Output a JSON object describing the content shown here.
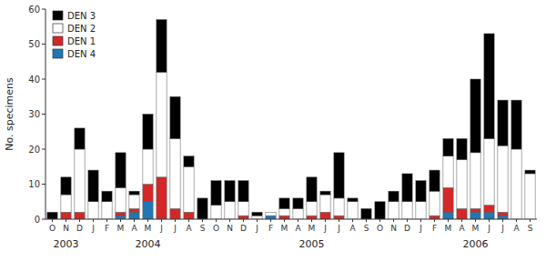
{
  "chart_data": {
    "type": "bar",
    "stacked": true,
    "categories": [
      "O",
      "N",
      "D",
      "J",
      "F",
      "M",
      "A",
      "M",
      "J",
      "J",
      "A",
      "S",
      "O",
      "N",
      "D",
      "J",
      "F",
      "M",
      "A",
      "M",
      "J",
      "J",
      "A",
      "S",
      "O",
      "N",
      "D",
      "J",
      "F",
      "M",
      "A",
      "M",
      "J",
      "J",
      "A",
      "S"
    ],
    "series": [
      {
        "name": "DEN 4",
        "color": "#1f77b4",
        "values": [
          0,
          0,
          0,
          0,
          0,
          1,
          2,
          5,
          0,
          0,
          0,
          0,
          0,
          0,
          0,
          0,
          1,
          0,
          0,
          0,
          0,
          0,
          0,
          0,
          0,
          0,
          0,
          0,
          0,
          2,
          0,
          2,
          2,
          1,
          0,
          0
        ]
      },
      {
        "name": "DEN 1",
        "color": "#d62728",
        "values": [
          0,
          2,
          2,
          0,
          0,
          1,
          1,
          5,
          12,
          3,
          2,
          0,
          0,
          0,
          1,
          0,
          0,
          1,
          0,
          1,
          2,
          1,
          0,
          0,
          0,
          0,
          0,
          0,
          1,
          7,
          3,
          1,
          2,
          1,
          0,
          0
        ]
      },
      {
        "name": "DEN 2",
        "color": "#ffffff",
        "values": [
          0,
          5,
          18,
          5,
          5,
          7,
          4,
          10,
          30,
          20,
          13,
          0,
          4,
          5,
          4,
          1,
          1,
          2,
          3,
          4,
          5,
          5,
          5,
          0,
          0,
          5,
          5,
          5,
          7,
          9,
          14,
          16,
          19,
          19,
          20,
          13
        ]
      },
      {
        "name": "DEN 3",
        "color": "#000000",
        "values": [
          2,
          5,
          6,
          9,
          3,
          10,
          1,
          10,
          15,
          12,
          3,
          6,
          7,
          6,
          6,
          1,
          0,
          3,
          3,
          7,
          1,
          13,
          1,
          3,
          5,
          3,
          8,
          6,
          6,
          5,
          6,
          21,
          30,
          13,
          14,
          1
        ]
      }
    ],
    "y_label": "No. specimens",
    "ylim": [
      0,
      60
    ],
    "yticks": [
      0,
      10,
      20,
      30,
      40,
      50,
      60
    ],
    "annotations": [
      {
        "text": "2003",
        "x": 1
      },
      {
        "text": "2004",
        "x": 7
      },
      {
        "text": "2005",
        "x": 19
      },
      {
        "text": "2006",
        "x": 31
      }
    ],
    "legend": "upper left",
    "grid": false
  }
}
